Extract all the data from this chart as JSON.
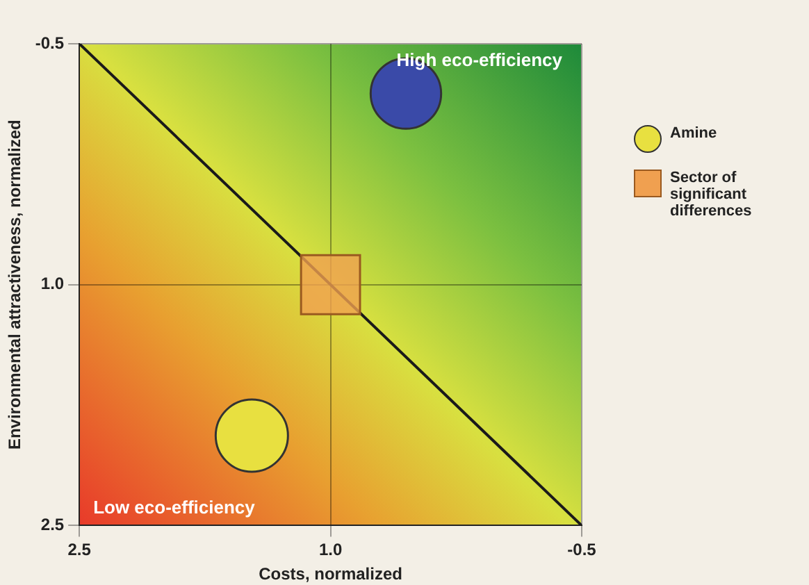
{
  "chart_data": {
    "type": "bubble",
    "xlabel": "Costs, normalized",
    "ylabel": "Environmental attractiveness, normalized",
    "xlim": [
      2.5,
      -0.5
    ],
    "xticks": [
      2.5,
      {
        "value": 1,
        "label": "1.0"
      },
      -0.5
    ],
    "ylim": [
      2.5,
      -0.5
    ],
    "yticks": [
      2.5,
      {
        "value": 1,
        "label": "1.0"
      },
      -0.5
    ],
    "grid": true,
    "legend": "right",
    "annotations": [
      "High eco-efficiency",
      "Low eco-efficiency"
    ],
    "series": [
      {
        "type": "line",
        "color": "#1a1a1a",
        "x": [
          2.5,
          -0.5
        ],
        "values": [
          -0.5,
          2.5
        ]
      },
      {
        "name": "Amine",
        "color": "#e8e040",
        "x": [
          1.47
        ],
        "values": [
          1.94
        ],
        "sizes": [
          1
        ]
      },
      {
        "color": "#3a4aa8",
        "x": [
          0.55
        ],
        "values": [
          -0.19
        ],
        "sizes": [
          0.95
        ]
      },
      {
        "type": "scatter",
        "name": "Sector of significant differences",
        "color": "#f0a050",
        "marker": "square",
        "x": [
          1.0
        ],
        "values": [
          1.0
        ]
      }
    ]
  }
}
